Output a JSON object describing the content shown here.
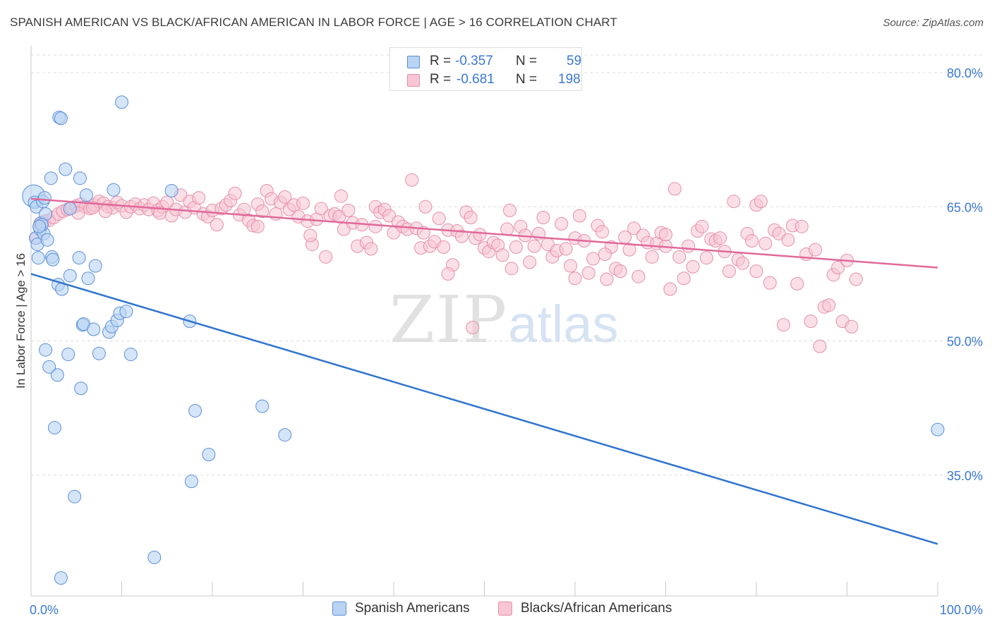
{
  "header": {
    "title": "SPANISH AMERICAN VS BLACK/AFRICAN AMERICAN IN LABOR FORCE | AGE > 16 CORRELATION CHART",
    "source": "Source: ZipAtlas.com"
  },
  "watermark": {
    "zip": "ZIP",
    "atlas": "atlas"
  },
  "legend": {
    "rows": [
      {
        "r_label": "R =",
        "r_value": "-0.357",
        "n_label": "N =",
        "n_value": "59"
      },
      {
        "r_label": "R =",
        "r_value": "-0.681",
        "n_label": "N =",
        "n_value": "198"
      }
    ]
  },
  "bottom_legend": {
    "items": [
      {
        "label": "Spanish Americans"
      },
      {
        "label": "Blacks/African Americans"
      }
    ]
  },
  "chart_data": {
    "type": "scatter",
    "title": "SPANISH AMERICAN VS BLACK/AFRICAN AMERICAN IN LABOR FORCE | AGE > 16 CORRELATION CHART",
    "xlabel": "",
    "ylabel": "In Labor Force | Age > 16",
    "xlim": [
      0,
      100
    ],
    "ylim": [
      21.5,
      83
    ],
    "x_tick_labels": [
      "0.0%",
      "100.0%"
    ],
    "y_ticks": [
      35,
      50,
      65,
      80
    ],
    "y_tick_labels": [
      "35.0%",
      "50.0%",
      "65.0%",
      "80.0%"
    ],
    "grid": true,
    "legend_position": "top-center",
    "colors": {
      "blue_fill": "#b9d3f3",
      "blue_stroke": "#5b8fd8",
      "blue_line": "#2f74d0",
      "pink_fill": "#f8c5d4",
      "pink_stroke": "#e58fab",
      "pink_line": "#e0699a",
      "tick_label": "#3a78d4",
      "grid": "#dcdcdc"
    },
    "series": [
      {
        "name": "Spanish Americans",
        "color": "#5b8fd8",
        "trend": {
          "x": [
            0,
            100
          ],
          "y": [
            57.5,
            27.3
          ]
        },
        "points": [
          [
            0.3,
            66.2
          ],
          [
            0.4,
            65.5
          ],
          [
            0.6,
            65.0
          ],
          [
            0.5,
            61.5
          ],
          [
            0.7,
            60.8
          ],
          [
            0.8,
            59.3
          ],
          [
            1.0,
            62.5
          ],
          [
            1.1,
            63.2
          ],
          [
            1.3,
            65.6
          ],
          [
            1.4,
            62.0
          ],
          [
            1.5,
            66.0
          ],
          [
            1.6,
            64.2
          ],
          [
            1.8,
            61.3
          ],
          [
            2.2,
            68.2
          ],
          [
            2.3,
            59.4
          ],
          [
            2.4,
            59.1
          ],
          [
            2.9,
            46.2
          ],
          [
            3.0,
            56.3
          ],
          [
            3.1,
            75.0
          ],
          [
            3.3,
            74.9
          ],
          [
            3.4,
            55.8
          ],
          [
            3.8,
            69.2
          ],
          [
            4.1,
            48.5
          ],
          [
            4.3,
            57.3
          ],
          [
            4.3,
            64.8
          ],
          [
            5.3,
            59.3
          ],
          [
            5.4,
            68.2
          ],
          [
            5.5,
            44.7
          ],
          [
            5.7,
            51.8
          ],
          [
            5.8,
            51.9
          ],
          [
            6.1,
            66.3
          ],
          [
            6.3,
            57.0
          ],
          [
            6.9,
            51.3
          ],
          [
            7.1,
            58.4
          ],
          [
            7.5,
            48.6
          ],
          [
            8.6,
            51.0
          ],
          [
            8.9,
            51.6
          ],
          [
            9.1,
            66.9
          ],
          [
            9.5,
            52.3
          ],
          [
            9.8,
            53.1
          ],
          [
            10.0,
            76.7
          ],
          [
            10.5,
            53.3
          ],
          [
            11.0,
            48.5
          ],
          [
            13.6,
            25.8
          ],
          [
            15.5,
            66.8
          ],
          [
            17.5,
            52.2
          ],
          [
            17.7,
            34.3
          ],
          [
            18.1,
            42.2
          ],
          [
            19.6,
            37.3
          ],
          [
            25.5,
            42.7
          ],
          [
            28.0,
            39.5
          ],
          [
            100.0,
            40.1
          ],
          [
            1.6,
            49.0
          ],
          [
            2.0,
            47.1
          ],
          [
            2.6,
            40.3
          ],
          [
            3.3,
            23.5
          ],
          [
            4.8,
            32.6
          ],
          [
            1.2,
            63.0
          ],
          [
            0.9,
            62.8
          ]
        ]
      },
      {
        "name": "Blacks/African Americans",
        "color": "#e58fab",
        "trend": {
          "x": [
            0,
            100
          ],
          "y": [
            65.9,
            58.2
          ]
        },
        "points": [
          [
            0.6,
            61.5
          ],
          [
            1.0,
            63.1
          ],
          [
            1.5,
            63.4
          ],
          [
            2.0,
            63.5
          ],
          [
            2.5,
            63.8
          ],
          [
            3.0,
            64.2
          ],
          [
            3.5,
            64.5
          ],
          [
            4.0,
            64.7
          ],
          [
            4.5,
            64.9
          ],
          [
            5.0,
            65.1
          ],
          [
            5.5,
            65.3
          ],
          [
            6.0,
            65.0
          ],
          [
            6.5,
            64.8
          ],
          [
            7.0,
            65.2
          ],
          [
            7.5,
            65.6
          ],
          [
            8.0,
            65.4
          ],
          [
            8.5,
            65.0
          ],
          [
            9.0,
            64.9
          ],
          [
            9.5,
            65.5
          ],
          [
            10.0,
            65.1
          ],
          [
            10.5,
            64.4
          ],
          [
            11.0,
            65.0
          ],
          [
            11.5,
            65.3
          ],
          [
            12.0,
            64.8
          ],
          [
            12.5,
            65.2
          ],
          [
            13.0,
            64.7
          ],
          [
            13.5,
            65.4
          ],
          [
            14.0,
            64.6
          ],
          [
            14.5,
            65.0
          ],
          [
            15.0,
            65.5
          ],
          [
            15.5,
            64.0
          ],
          [
            16.0,
            64.7
          ],
          [
            16.5,
            66.3
          ],
          [
            17.0,
            64.4
          ],
          [
            17.5,
            65.6
          ],
          [
            18.0,
            64.9
          ],
          [
            18.5,
            66.0
          ],
          [
            19.0,
            64.2
          ],
          [
            19.5,
            63.9
          ],
          [
            20.0,
            64.6
          ],
          [
            20.5,
            63.0
          ],
          [
            21.0,
            64.8
          ],
          [
            21.5,
            65.2
          ],
          [
            22.0,
            65.7
          ],
          [
            22.5,
            66.5
          ],
          [
            23.0,
            64.1
          ],
          [
            23.5,
            64.7
          ],
          [
            24.0,
            63.5
          ],
          [
            24.5,
            62.9
          ],
          [
            25.0,
            65.3
          ],
          [
            25.5,
            64.5
          ],
          [
            26.0,
            66.8
          ],
          [
            26.5,
            65.9
          ],
          [
            27.0,
            64.2
          ],
          [
            27.5,
            65.5
          ],
          [
            28.0,
            66.1
          ],
          [
            28.5,
            64.7
          ],
          [
            29.0,
            65.2
          ],
          [
            29.5,
            63.9
          ],
          [
            30.0,
            65.4
          ],
          [
            30.5,
            63.4
          ],
          [
            31.0,
            60.8
          ],
          [
            31.5,
            63.6
          ],
          [
            32.0,
            64.8
          ],
          [
            32.5,
            59.4
          ],
          [
            33.0,
            64.0
          ],
          [
            33.5,
            64.2
          ],
          [
            34.0,
            63.9
          ],
          [
            34.5,
            62.5
          ],
          [
            35.0,
            64.6
          ],
          [
            35.5,
            63.2
          ],
          [
            36.0,
            60.6
          ],
          [
            36.5,
            63.0
          ],
          [
            37.0,
            61.0
          ],
          [
            37.5,
            60.3
          ],
          [
            38.0,
            65.0
          ],
          [
            38.5,
            64.4
          ],
          [
            39.0,
            64.7
          ],
          [
            39.5,
            64.0
          ],
          [
            40.0,
            62.1
          ],
          [
            40.5,
            63.3
          ],
          [
            41.0,
            62.8
          ],
          [
            41.5,
            62.5
          ],
          [
            42.0,
            68.0
          ],
          [
            42.5,
            62.6
          ],
          [
            43.0,
            60.4
          ],
          [
            43.5,
            65.0
          ],
          [
            44.0,
            60.6
          ],
          [
            44.5,
            61.1
          ],
          [
            45.0,
            63.7
          ],
          [
            45.5,
            60.5
          ],
          [
            46.0,
            62.4
          ],
          [
            46.5,
            58.5
          ],
          [
            47.0,
            62.3
          ],
          [
            47.5,
            61.7
          ],
          [
            48.0,
            64.4
          ],
          [
            48.5,
            63.8
          ],
          [
            49.0,
            61.5
          ],
          [
            49.5,
            61.9
          ],
          [
            50.0,
            60.4
          ],
          [
            50.5,
            60.0
          ],
          [
            51.0,
            61.0
          ],
          [
            51.5,
            60.7
          ],
          [
            52.0,
            59.6
          ],
          [
            52.5,
            62.5
          ],
          [
            53.0,
            58.1
          ],
          [
            53.5,
            60.5
          ],
          [
            54.0,
            62.8
          ],
          [
            54.5,
            61.8
          ],
          [
            55.0,
            58.8
          ],
          [
            55.5,
            60.6
          ],
          [
            56.0,
            62.0
          ],
          [
            56.5,
            63.8
          ],
          [
            57.0,
            60.8
          ],
          [
            57.5,
            59.4
          ],
          [
            58.0,
            60.1
          ],
          [
            58.5,
            63.1
          ],
          [
            59.0,
            60.3
          ],
          [
            59.5,
            58.4
          ],
          [
            60.0,
            61.5
          ],
          [
            60.5,
            64.0
          ],
          [
            61.0,
            61.2
          ],
          [
            61.5,
            57.6
          ],
          [
            62.0,
            59.2
          ],
          [
            62.5,
            62.9
          ],
          [
            63.0,
            62.2
          ],
          [
            63.5,
            56.9
          ],
          [
            64.0,
            60.5
          ],
          [
            64.5,
            58.1
          ],
          [
            65.0,
            57.8
          ],
          [
            65.5,
            61.6
          ],
          [
            66.0,
            60.2
          ],
          [
            66.5,
            62.6
          ],
          [
            67.0,
            57.2
          ],
          [
            67.5,
            61.8
          ],
          [
            68.0,
            61.0
          ],
          [
            68.5,
            59.4
          ],
          [
            69.0,
            60.9
          ],
          [
            69.5,
            62.1
          ],
          [
            70.0,
            60.6
          ],
          [
            70.5,
            55.8
          ],
          [
            71.0,
            67.0
          ],
          [
            71.5,
            59.4
          ],
          [
            72.0,
            57.0
          ],
          [
            72.5,
            60.6
          ],
          [
            73.0,
            58.3
          ],
          [
            73.5,
            62.3
          ],
          [
            74.0,
            62.8
          ],
          [
            74.5,
            59.3
          ],
          [
            75.0,
            61.4
          ],
          [
            75.5,
            61.2
          ],
          [
            76.0,
            61.5
          ],
          [
            76.5,
            60.0
          ],
          [
            77.0,
            57.8
          ],
          [
            77.5,
            65.6
          ],
          [
            78.0,
            59.1
          ],
          [
            78.5,
            58.7
          ],
          [
            79.0,
            62.0
          ],
          [
            79.5,
            61.2
          ],
          [
            80.0,
            65.2
          ],
          [
            80.5,
            65.6
          ],
          [
            81.0,
            60.9
          ],
          [
            81.5,
            56.5
          ],
          [
            82.0,
            62.4
          ],
          [
            82.5,
            62.0
          ],
          [
            83.0,
            51.8
          ],
          [
            83.5,
            61.3
          ],
          [
            84.0,
            62.9
          ],
          [
            84.5,
            56.4
          ],
          [
            85.0,
            62.8
          ],
          [
            85.5,
            59.7
          ],
          [
            86.0,
            52.2
          ],
          [
            86.5,
            60.2
          ],
          [
            87.0,
            49.4
          ],
          [
            87.5,
            53.8
          ],
          [
            88.0,
            54.0
          ],
          [
            88.5,
            57.4
          ],
          [
            89.0,
            58.2
          ],
          [
            89.5,
            52.2
          ],
          [
            90.0,
            59.0
          ],
          [
            90.5,
            51.6
          ],
          [
            91.0,
            56.9
          ],
          [
            5.2,
            64.3
          ],
          [
            6.8,
            64.9
          ],
          [
            8.2,
            64.5
          ],
          [
            14.2,
            64.3
          ],
          [
            30.8,
            61.8
          ],
          [
            34.2,
            66.2
          ],
          [
            43.3,
            62.1
          ],
          [
            48.7,
            51.5
          ],
          [
            52.8,
            64.6
          ],
          [
            63.3,
            59.7
          ],
          [
            46.0,
            57.5
          ],
          [
            60.0,
            57.0
          ],
          [
            70.0,
            61.9
          ],
          [
            80.0,
            57.8
          ],
          [
            38.0,
            62.8
          ],
          [
            25.0,
            62.8
          ]
        ]
      }
    ]
  }
}
